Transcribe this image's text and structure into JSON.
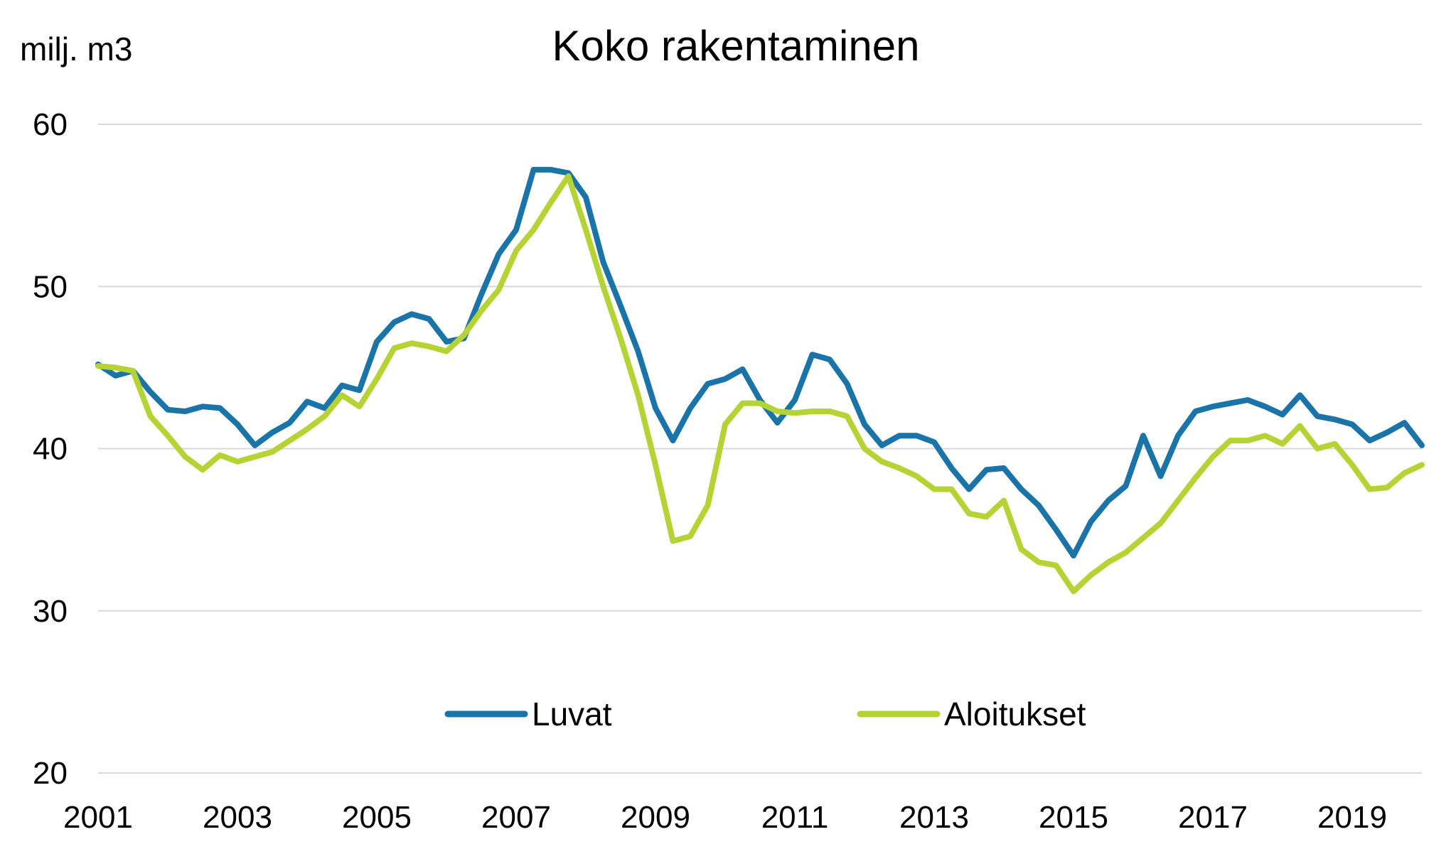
{
  "chart_data": {
    "type": "line",
    "title": "Koko rakentaminen",
    "ylabel": "milj. m3",
    "xlabel": "",
    "ylim": [
      20,
      60
    ],
    "yticks": [
      20,
      30,
      40,
      50,
      60
    ],
    "xlim": [
      2001,
      2020
    ],
    "xticks": [
      2001,
      2003,
      2005,
      2007,
      2009,
      2011,
      2013,
      2015,
      2017,
      2019
    ],
    "grid": true,
    "legend": "bottom-center",
    "colors": {
      "Luvat": "#1a74a8",
      "Aloitukset": "#b5d334"
    },
    "series": [
      {
        "name": "Luvat",
        "x": [
          2001.0,
          2001.25,
          2001.5,
          2001.75,
          2002.0,
          2002.25,
          2002.5,
          2002.75,
          2003.0,
          2003.25,
          2003.5,
          2003.75,
          2004.0,
          2004.25,
          2004.5,
          2004.75,
          2005.0,
          2005.25,
          2005.5,
          2005.75,
          2006.0,
          2006.25,
          2006.5,
          2006.75,
          2007.0,
          2007.25,
          2007.5,
          2007.75,
          2008.0,
          2008.25,
          2008.5,
          2008.75,
          2009.0,
          2009.25,
          2009.5,
          2009.75,
          2010.0,
          2010.25,
          2010.5,
          2010.75,
          2011.0,
          2011.25,
          2011.5,
          2011.75,
          2012.0,
          2012.25,
          2012.5,
          2012.75,
          2013.0,
          2013.25,
          2013.5,
          2013.75,
          2014.0,
          2014.25,
          2014.5,
          2014.75,
          2015.0,
          2015.25,
          2015.5,
          2015.75,
          2016.0,
          2016.25,
          2016.5,
          2016.75,
          2017.0,
          2017.25,
          2017.5,
          2017.75,
          2018.0,
          2018.25,
          2018.5,
          2018.75,
          2019.0,
          2019.25,
          2019.5,
          2019.75,
          2020.0
        ],
        "values": [
          45.2,
          44.5,
          44.8,
          43.5,
          42.4,
          42.3,
          42.6,
          42.5,
          41.5,
          40.2,
          41.0,
          41.6,
          42.9,
          42.5,
          43.9,
          43.6,
          46.6,
          47.8,
          48.3,
          48.0,
          46.6,
          46.8,
          49.5,
          52.0,
          53.5,
          57.2,
          57.2,
          57.0,
          55.5,
          51.5,
          48.8,
          46.0,
          42.5,
          40.5,
          42.5,
          44.0,
          44.3,
          44.9,
          43.0,
          41.6,
          43.0,
          45.8,
          45.5,
          44.0,
          41.5,
          40.2,
          40.8,
          40.8,
          40.4,
          38.8,
          37.5,
          38.7,
          38.8,
          37.5,
          36.5,
          35.0,
          33.4,
          35.5,
          36.8,
          37.7,
          40.8,
          38.3,
          40.8,
          42.3,
          42.6,
          42.8,
          43.0,
          42.6,
          42.1,
          43.3,
          42.0,
          41.8,
          41.5,
          40.5,
          41.0,
          41.6,
          40.2
        ]
      },
      {
        "name": "Aloitukset",
        "x": [
          2001.0,
          2001.25,
          2001.5,
          2001.75,
          2002.0,
          2002.25,
          2002.5,
          2002.75,
          2003.0,
          2003.25,
          2003.5,
          2003.75,
          2004.0,
          2004.25,
          2004.5,
          2004.75,
          2005.0,
          2005.25,
          2005.5,
          2005.75,
          2006.0,
          2006.25,
          2006.5,
          2006.75,
          2007.0,
          2007.25,
          2007.5,
          2007.75,
          2008.0,
          2008.25,
          2008.5,
          2008.75,
          2009.0,
          2009.25,
          2009.5,
          2009.75,
          2010.0,
          2010.25,
          2010.5,
          2010.75,
          2011.0,
          2011.25,
          2011.5,
          2011.75,
          2012.0,
          2012.25,
          2012.5,
          2012.75,
          2013.0,
          2013.25,
          2013.5,
          2013.75,
          2014.0,
          2014.25,
          2014.5,
          2014.75,
          2015.0,
          2015.25,
          2015.5,
          2015.75,
          2016.0,
          2016.25,
          2016.5,
          2016.75,
          2017.0,
          2017.25,
          2017.5,
          2017.75,
          2018.0,
          2018.25,
          2018.5,
          2018.75,
          2019.0,
          2019.25,
          2019.5,
          2019.75,
          2020.0
        ],
        "values": [
          45.1,
          45.0,
          44.8,
          42.0,
          40.8,
          39.5,
          38.7,
          39.6,
          39.2,
          39.5,
          39.8,
          40.5,
          41.2,
          42.0,
          43.3,
          42.6,
          44.3,
          46.2,
          46.5,
          46.3,
          46.0,
          47.0,
          48.5,
          49.8,
          52.2,
          53.5,
          55.2,
          56.8,
          53.5,
          50.0,
          46.8,
          43.3,
          39.0,
          34.3,
          34.6,
          36.5,
          41.5,
          42.8,
          42.8,
          42.3,
          42.2,
          42.3,
          42.3,
          42.0,
          40.0,
          39.2,
          38.8,
          38.3,
          37.5,
          37.5,
          36.0,
          35.8,
          36.8,
          33.8,
          33.0,
          32.8,
          31.2,
          32.2,
          33.0,
          33.6,
          34.5,
          35.4,
          36.8,
          38.2,
          39.5,
          40.5,
          40.5,
          40.8,
          40.3,
          41.4,
          40.0,
          40.3,
          39.0,
          37.5,
          37.6,
          38.5,
          39.0
        ]
      }
    ]
  }
}
